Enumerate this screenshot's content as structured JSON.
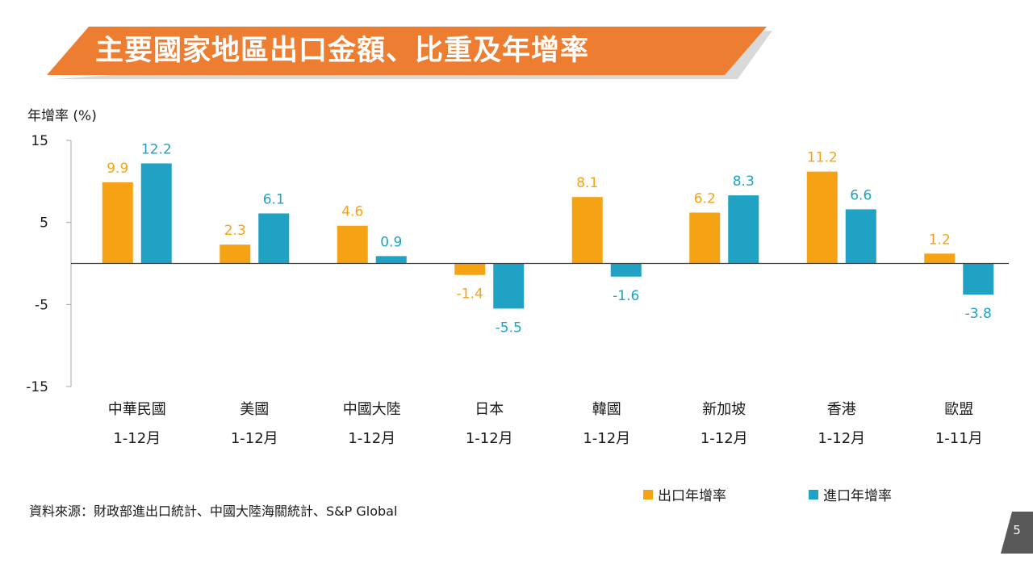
{
  "slide": {
    "title": "主要國家地區出口金額、比重及年增率",
    "source": "資料來源：財政部進出口統計、中國大陸海關統計、S&P Global",
    "page_number": "5"
  },
  "colors": {
    "title_orange": "#ED7D31",
    "export": "#F5A315",
    "import": "#1FA2C3",
    "page_tab": "#595959"
  },
  "chart_data": {
    "type": "bar",
    "ylabel": "年增率 (%)",
    "ylim": [
      -15,
      15
    ],
    "yticks": [
      15,
      5,
      -5,
      -15
    ],
    "categories": [
      {
        "name": "中華民國",
        "period": "1-12月"
      },
      {
        "name": "美國",
        "period": "1-12月"
      },
      {
        "name": "中國大陸",
        "period": "1-12月"
      },
      {
        "name": "日本",
        "period": "1-12月"
      },
      {
        "name": "韓國",
        "period": "1-12月"
      },
      {
        "name": "新加坡",
        "period": "1-12月"
      },
      {
        "name": "香港",
        "period": "1-12月"
      },
      {
        "name": "歐盟",
        "period": "1-11月"
      }
    ],
    "series": [
      {
        "name": "出口年增率",
        "values": [
          9.9,
          2.3,
          4.6,
          -1.4,
          8.1,
          6.2,
          11.2,
          1.2
        ]
      },
      {
        "name": "進口年增率",
        "values": [
          12.2,
          6.1,
          0.9,
          -5.5,
          -1.6,
          8.3,
          6.6,
          -3.8
        ]
      }
    ],
    "legend_position": "bottom-right",
    "grid": false
  }
}
